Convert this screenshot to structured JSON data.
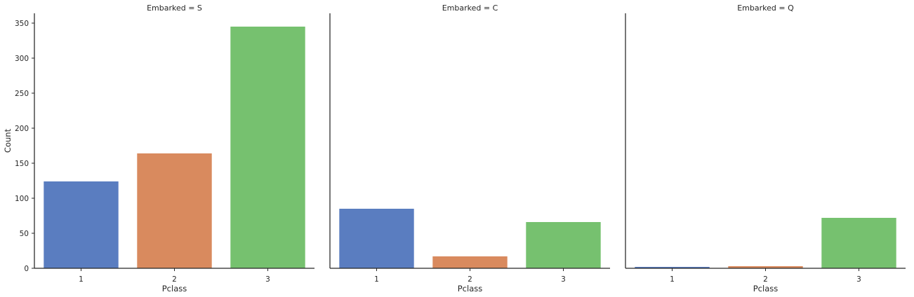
{
  "chart_data": {
    "type": "bar",
    "facet_by": "Embarked",
    "ylabel": "Count",
    "xlabel": "Pclass",
    "categories": [
      "1",
      "2",
      "3"
    ],
    "category_colors": [
      "#5a7dc0",
      "#d98a5e",
      "#76c16f"
    ],
    "ylim": [
      0,
      364
    ],
    "yticks": [
      0,
      50,
      100,
      150,
      200,
      250,
      300,
      350
    ],
    "grid": false,
    "legend": "none",
    "panels": [
      {
        "title": "Embarked = S",
        "values": [
          124,
          164,
          345
        ]
      },
      {
        "title": "Embarked = C",
        "values": [
          85,
          17,
          66
        ]
      },
      {
        "title": "Embarked = Q",
        "values": [
          2,
          3,
          72
        ]
      }
    ]
  }
}
